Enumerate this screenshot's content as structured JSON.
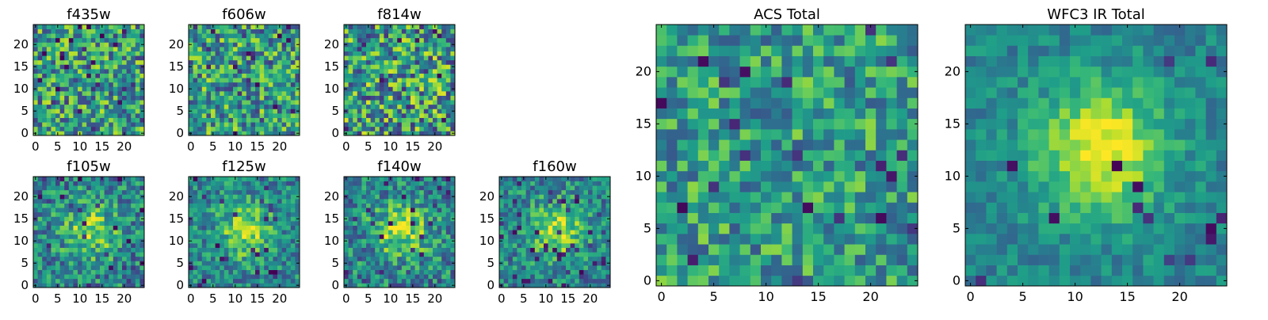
{
  "chart_data": [
    {
      "type": "heatmap",
      "title": "f435w",
      "colormap": "viridis",
      "grid_size": 25,
      "xlim": [
        0,
        24
      ],
      "ylim": [
        0,
        24
      ],
      "xticks": [
        0,
        5,
        10,
        15,
        20
      ],
      "yticks": [
        0,
        5,
        10,
        15,
        20
      ],
      "pattern": "noise",
      "blob_strength": 0.0,
      "noise_strength": 0.45,
      "dark_fraction": 0.05
    },
    {
      "type": "heatmap",
      "title": "f606w",
      "colormap": "viridis",
      "grid_size": 25,
      "xlim": [
        0,
        24
      ],
      "ylim": [
        0,
        24
      ],
      "xticks": [
        0,
        5,
        10,
        15,
        20
      ],
      "yticks": [
        0,
        5,
        10,
        15,
        20
      ],
      "pattern": "noise",
      "blob_strength": 0.0,
      "noise_strength": 0.45,
      "dark_fraction": 0.04
    },
    {
      "type": "heatmap",
      "title": "f814w",
      "colormap": "viridis",
      "grid_size": 25,
      "xlim": [
        0,
        24
      ],
      "ylim": [
        0,
        24
      ],
      "xticks": [
        0,
        5,
        10,
        15,
        20
      ],
      "yticks": [
        0,
        5,
        10,
        15,
        20
      ],
      "pattern": "noise",
      "blob_strength": 0.0,
      "noise_strength": 0.5,
      "dark_fraction": 0.06
    },
    {
      "type": "heatmap",
      "title": "f105w",
      "colormap": "viridis",
      "grid_size": 25,
      "xlim": [
        0,
        24
      ],
      "ylim": [
        0,
        24
      ],
      "xticks": [
        0,
        5,
        10,
        15,
        20
      ],
      "yticks": [
        0,
        5,
        10,
        15,
        20
      ],
      "pattern": "central-blob",
      "blob_strength": 0.35,
      "noise_strength": 0.4,
      "dark_fraction": 0.04
    },
    {
      "type": "heatmap",
      "title": "f125w",
      "colormap": "viridis",
      "grid_size": 25,
      "xlim": [
        0,
        24
      ],
      "ylim": [
        0,
        24
      ],
      "xticks": [
        0,
        5,
        10,
        15,
        20
      ],
      "yticks": [
        0,
        5,
        10,
        15,
        20
      ],
      "pattern": "central-blob",
      "blob_strength": 0.4,
      "noise_strength": 0.35,
      "dark_fraction": 0.04
    },
    {
      "type": "heatmap",
      "title": "f140w",
      "colormap": "viridis",
      "grid_size": 25,
      "xlim": [
        0,
        24
      ],
      "ylim": [
        0,
        24
      ],
      "xticks": [
        0,
        5,
        10,
        15,
        20
      ],
      "yticks": [
        0,
        5,
        10,
        15,
        20
      ],
      "pattern": "central-blob",
      "blob_strength": 0.4,
      "noise_strength": 0.4,
      "dark_fraction": 0.04
    },
    {
      "type": "heatmap",
      "title": "f160w",
      "colormap": "viridis",
      "grid_size": 25,
      "xlim": [
        0,
        24
      ],
      "ylim": [
        0,
        24
      ],
      "xticks": [
        0,
        5,
        10,
        15,
        20
      ],
      "yticks": [
        0,
        5,
        10,
        15,
        20
      ],
      "pattern": "central-blob",
      "blob_strength": 0.45,
      "noise_strength": 0.35,
      "dark_fraction": 0.05
    },
    {
      "type": "heatmap",
      "title": "ACS Total",
      "colormap": "viridis",
      "grid_size": 25,
      "xlim": [
        0,
        24
      ],
      "ylim": [
        0,
        24
      ],
      "xticks": [
        0,
        5,
        10,
        15,
        20
      ],
      "yticks": [
        0,
        5,
        10,
        15,
        20
      ],
      "pattern": "noise",
      "blob_strength": 0.05,
      "noise_strength": 0.35,
      "dark_fraction": 0.03
    },
    {
      "type": "heatmap",
      "title": "WFC3 IR Total",
      "colormap": "viridis",
      "grid_size": 25,
      "xlim": [
        0,
        24
      ],
      "ylim": [
        0,
        24
      ],
      "xticks": [
        0,
        5,
        10,
        15,
        20
      ],
      "yticks": [
        0,
        5,
        10,
        15,
        20
      ],
      "pattern": "central-blob",
      "blob_strength": 0.55,
      "noise_strength": 0.2,
      "dark_fraction": 0.03
    }
  ]
}
